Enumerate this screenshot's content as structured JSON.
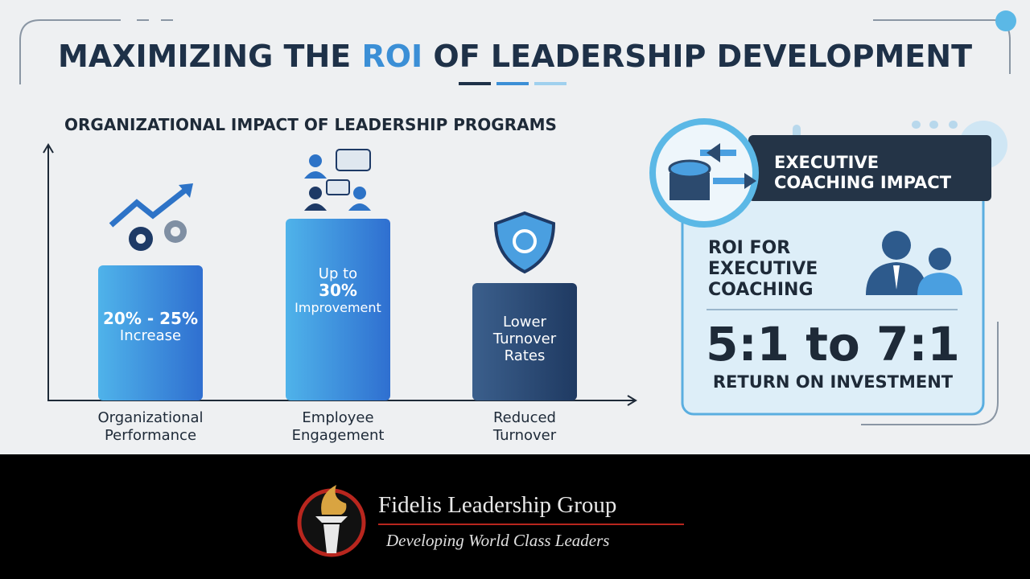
{
  "header": {
    "title": [
      "MAXIMIZING THE",
      "ROI",
      "OF LEADERSHIP DEVELOPMENT"
    ]
  },
  "impact": {
    "title": "ORGANIZATIONAL IMPACT OF LEADERSHIP PROGRAMS",
    "bars": [
      {
        "lines": [
          "20% - 25%",
          "Increase"
        ],
        "label": [
          "Organizational",
          "Performance"
        ]
      },
      {
        "lines": [
          "Up to",
          "30%",
          "Improvement"
        ],
        "label": [
          "Employee",
          "Engagement"
        ]
      },
      {
        "lines": [
          "Lower",
          "Turnover",
          "Rates"
        ],
        "label": [
          "Reduced",
          "Turnover"
        ]
      }
    ]
  },
  "coaching": {
    "title": [
      "EXECUTIVE",
      "COACHING IMPACT"
    ],
    "roi_label": [
      "ROI FOR",
      "EXECUTIVE",
      "COACHING"
    ],
    "ratio": "5:1 to 7:1",
    "caption": "RETURN ON INVESTMENT"
  },
  "footer": {
    "company": "Fidelis Leadership Group",
    "tagline": "Developing World Class Leaders"
  }
}
